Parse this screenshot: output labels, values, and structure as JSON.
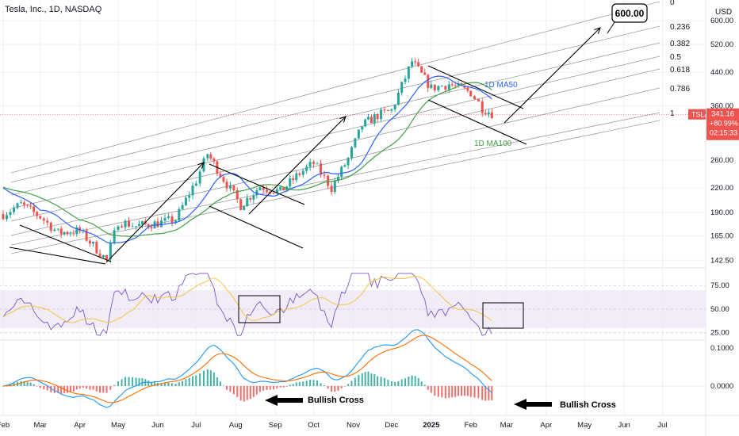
{
  "header": {
    "title": "Tesla, Inc., 1D, NASDAQ",
    "currency": "USD"
  },
  "colors": {
    "up": "#26a69a",
    "down": "#ef5350",
    "ma50": "#2962ff",
    "ma100": "#43a047",
    "rsi": "#7e57c2",
    "rsi_ma": "#f5c542",
    "macd": "#2196f3",
    "signal": "#ff6d00",
    "channel": "#9e9e9e",
    "grid": "#eef0f3",
    "price_tag": "#ef5350"
  },
  "chart_data": [
    {
      "type": "candlestick",
      "pane": "price",
      "scale": "log",
      "ylim": [
        142.5,
        640
      ],
      "y_ticks": [
        {
          "value": 600,
          "label": "600.00"
        },
        {
          "value": 520,
          "label": "520.00"
        },
        {
          "value": 440,
          "label": "440.00"
        },
        {
          "value": 360,
          "label": "360.00"
        },
        {
          "value": 260,
          "label": "260.00"
        },
        {
          "value": 220,
          "label": "220.00"
        },
        {
          "value": 190,
          "label": "190.00"
        },
        {
          "value": 165,
          "label": "165.00"
        },
        {
          "value": 142.5,
          "label": "142.50"
        }
      ],
      "x_ticks": [
        "Feb",
        "Mar",
        "Apr",
        "May",
        "Jun",
        "Jul",
        "Aug",
        "Sep",
        "Oct",
        "Nov",
        "Dec",
        "2025",
        "Feb",
        "Mar",
        "Apr",
        "May",
        "Jun",
        "Jul"
      ],
      "last_price": {
        "price": "341.16",
        "change": "+80.99%",
        "countdown": "02:15:33",
        "symbol": "TSLA"
      },
      "series": [
        {
          "name": "1D MA50"
        },
        {
          "name": "1D MA100"
        }
      ],
      "fib_levels": [
        "0",
        "0.236",
        "0.382",
        "0.5",
        "0.618",
        "0.786",
        "1"
      ],
      "target_label": "600.00",
      "approx_closes": [
        {
          "date": "2024-02-01",
          "close": 188
        },
        {
          "date": "2024-02-15",
          "close": 199
        },
        {
          "date": "2024-03-01",
          "close": 185
        },
        {
          "date": "2024-03-15",
          "close": 168
        },
        {
          "date": "2024-04-01",
          "close": 170
        },
        {
          "date": "2024-04-22",
          "close": 142.5
        },
        {
          "date": "2024-05-01",
          "close": 180
        },
        {
          "date": "2024-05-15",
          "close": 175
        },
        {
          "date": "2024-06-01",
          "close": 178
        },
        {
          "date": "2024-06-15",
          "close": 182
        },
        {
          "date": "2024-07-01",
          "close": 230
        },
        {
          "date": "2024-07-10",
          "close": 270
        },
        {
          "date": "2024-07-25",
          "close": 225
        },
        {
          "date": "2024-08-05",
          "close": 198
        },
        {
          "date": "2024-08-20",
          "close": 222
        },
        {
          "date": "2024-09-05",
          "close": 215
        },
        {
          "date": "2024-09-20",
          "close": 240
        },
        {
          "date": "2024-10-01",
          "close": 255
        },
        {
          "date": "2024-10-15",
          "close": 220
        },
        {
          "date": "2024-10-28",
          "close": 262
        },
        {
          "date": "2024-11-08",
          "close": 320
        },
        {
          "date": "2024-11-20",
          "close": 340
        },
        {
          "date": "2024-12-01",
          "close": 350
        },
        {
          "date": "2024-12-17",
          "close": 470
        },
        {
          "date": "2025-01-01",
          "close": 400
        },
        {
          "date": "2025-01-15",
          "close": 410
        },
        {
          "date": "2025-02-01",
          "close": 390
        },
        {
          "date": "2025-02-10",
          "close": 355
        },
        {
          "date": "2025-02-20",
          "close": 341.16
        }
      ]
    },
    {
      "type": "line",
      "pane": "rsi",
      "ylim": [
        18,
        92
      ],
      "y_ticks": [
        {
          "value": 75,
          "label": "75.00"
        },
        {
          "value": 50,
          "label": "50.00"
        },
        {
          "value": 25,
          "label": "25.00"
        }
      ],
      "band": [
        30,
        70
      ]
    },
    {
      "type": "line",
      "pane": "macd",
      "y_ticks": [
        {
          "value": 0.1,
          "label": "0.1000"
        },
        {
          "value": 0,
          "label": "0.0000"
        }
      ],
      "annotations": [
        "Bullish Cross",
        "Bullish Cross"
      ]
    }
  ]
}
